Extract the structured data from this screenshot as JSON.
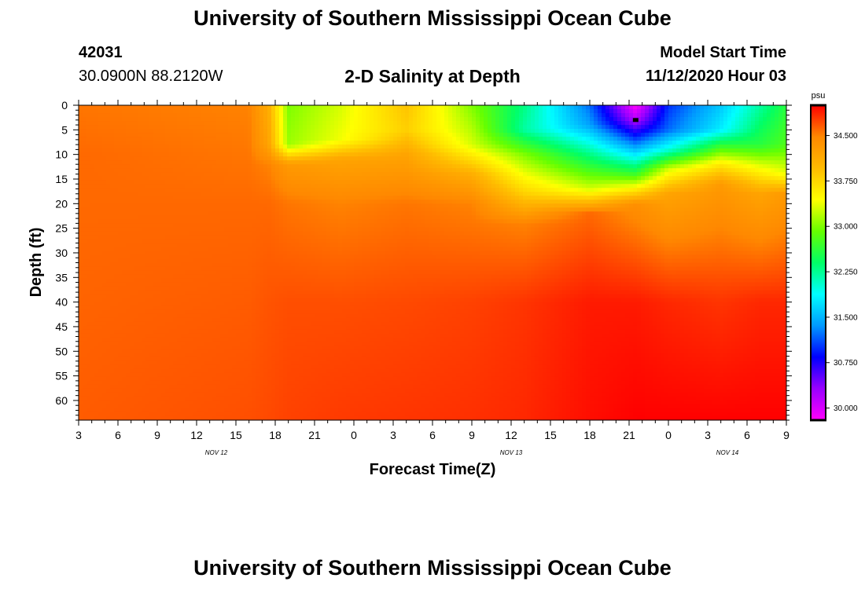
{
  "header": {
    "title": "University of Southern Mississippi Ocean Cube",
    "footer_title": "University of Southern Mississippi Ocean Cube",
    "station_id": "42031",
    "station_coords": "30.0900N 88.2120W",
    "model_label": "Model Start Time",
    "model_time": "11/12/2020 Hour 03"
  },
  "chart_data": {
    "type": "heatmap",
    "title": "2-D Salinity at Depth",
    "xlabel": "Forecast Time(Z)",
    "ylabel": "Depth (ft)",
    "x_tick_labels": [
      "3",
      "6",
      "9",
      "12",
      "15",
      "18",
      "21",
      "0",
      "3",
      "6",
      "9",
      "12",
      "15",
      "18",
      "21",
      "0",
      "3",
      "6",
      "9"
    ],
    "x_range_hours": [
      0,
      54
    ],
    "x_tick_step_hours": 3,
    "date_labels": [
      {
        "label": "NOV 12",
        "hour_offset": 10.5
      },
      {
        "label": "NOV 13",
        "hour_offset": 33
      },
      {
        "label": "NOV 14",
        "hour_offset": 49.5
      }
    ],
    "y_tick_labels": [
      "0",
      "5",
      "10",
      "15",
      "20",
      "25",
      "30",
      "35",
      "40",
      "45",
      "50",
      "55",
      "60"
    ],
    "y_range_ft": [
      0,
      64
    ],
    "colorbar": {
      "unit": "psu",
      "ticks": [
        "34.500",
        "33.750",
        "33.000",
        "32.250",
        "31.500",
        "30.750",
        "30.000"
      ],
      "range": [
        29.8,
        35.0
      ],
      "colors": [
        "#ff00ff",
        "#9900ff",
        "#0000ff",
        "#0099ff",
        "#00ffff",
        "#00ff66",
        "#66ff00",
        "#ffff00",
        "#ffbb00",
        "#ff8800",
        "#ff0000"
      ]
    },
    "salinity_profiles": [
      {
        "hour": 0,
        "depth": [
          0,
          10,
          20,
          40,
          64
        ],
        "psu": [
          34.55,
          34.6,
          34.6,
          34.62,
          34.65
        ]
      },
      {
        "hour": 13,
        "depth": [
          0,
          10,
          20,
          40,
          64
        ],
        "psu": [
          34.5,
          34.55,
          34.6,
          34.65,
          34.7
        ]
      },
      {
        "hour": 14.5,
        "depth": [
          0,
          8,
          12,
          20,
          40,
          64
        ],
        "psu": [
          34.1,
          34.2,
          34.5,
          34.6,
          34.68,
          34.72
        ]
      },
      {
        "hour": 16,
        "depth": [
          0,
          8,
          12,
          20,
          40,
          64
        ],
        "psu": [
          33.0,
          33.1,
          34.3,
          34.55,
          34.7,
          34.75
        ]
      },
      {
        "hour": 20,
        "depth": [
          0,
          7,
          11,
          20,
          40,
          64
        ],
        "psu": [
          33.3,
          33.4,
          34.2,
          34.5,
          34.7,
          34.78
        ]
      },
      {
        "hour": 25,
        "depth": [
          0,
          5,
          10,
          20,
          40,
          64
        ],
        "psu": [
          33.9,
          33.8,
          34.2,
          34.55,
          34.72,
          34.8
        ]
      },
      {
        "hour": 30,
        "depth": [
          0,
          8,
          14,
          20,
          40,
          64
        ],
        "psu": [
          33.0,
          33.3,
          34.1,
          34.5,
          34.75,
          34.82
        ]
      },
      {
        "hour": 34,
        "depth": [
          0,
          5,
          10,
          18,
          24,
          40,
          64
        ],
        "psu": [
          32.3,
          32.2,
          33.0,
          33.8,
          34.5,
          34.8,
          34.85
        ]
      },
      {
        "hour": 39,
        "depth": [
          0,
          4,
          10,
          17,
          22,
          40,
          64
        ],
        "psu": [
          31.2,
          31.4,
          32.3,
          33.3,
          34.6,
          34.9,
          34.95
        ]
      },
      {
        "hour": 42.5,
        "depth": [
          0,
          3,
          8,
          14,
          20,
          40,
          64
        ],
        "psu": [
          29.8,
          30.2,
          31.3,
          32.7,
          34.4,
          34.9,
          35.0
        ]
      },
      {
        "hour": 45,
        "depth": [
          0,
          5,
          9,
          13,
          18,
          40,
          64
        ],
        "psu": [
          31.0,
          31.2,
          32.0,
          33.3,
          34.2,
          34.85,
          35.0
        ]
      },
      {
        "hour": 49,
        "depth": [
          0,
          5,
          8,
          12,
          16,
          40,
          64
        ],
        "psu": [
          31.6,
          31.8,
          32.6,
          33.6,
          34.3,
          34.8,
          35.0
        ]
      },
      {
        "hour": 52,
        "depth": [
          0,
          8,
          12,
          18,
          40,
          64
        ],
        "psu": [
          32.2,
          32.6,
          33.3,
          34.2,
          34.85,
          35.0
        ]
      },
      {
        "hour": 54,
        "depth": [
          0,
          8,
          14,
          18,
          40,
          64
        ],
        "psu": [
          32.6,
          32.8,
          33.4,
          34.3,
          34.85,
          35.0
        ]
      }
    ],
    "marker": {
      "hour": 42.5,
      "depth_ft": 3
    }
  }
}
